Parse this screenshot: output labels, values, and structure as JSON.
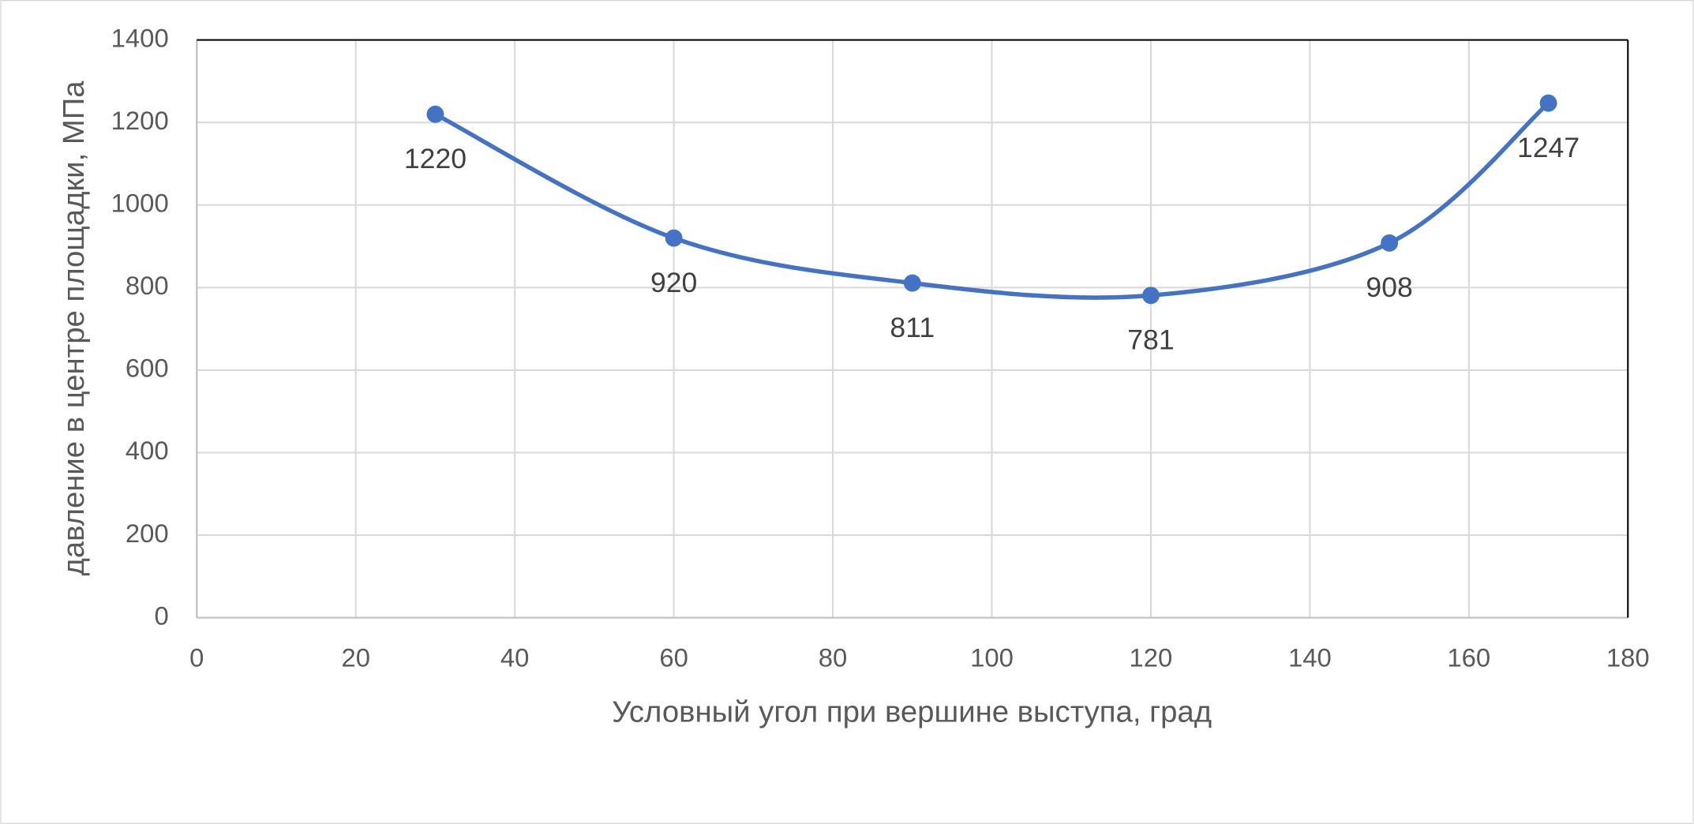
{
  "chart_data": {
    "type": "line",
    "x_label": "Условный угол при вершине выступа, град",
    "y_label": "давление в центре площадки, МПа",
    "x": [
      30,
      60,
      90,
      120,
      150,
      170
    ],
    "series": [
      {
        "name": "давление",
        "color": "#4472c4",
        "values": [
          1220,
          920,
          811,
          781,
          908,
          1247
        ]
      }
    ],
    "xlim": [
      0,
      180
    ],
    "xticks": [
      0,
      20,
      40,
      60,
      80,
      100,
      120,
      140,
      160,
      180
    ],
    "ylim": [
      0,
      1400
    ],
    "yticks": [
      0,
      200,
      400,
      600,
      800,
      1000,
      1200,
      1400
    ],
    "grid": true,
    "smooth": true
  }
}
